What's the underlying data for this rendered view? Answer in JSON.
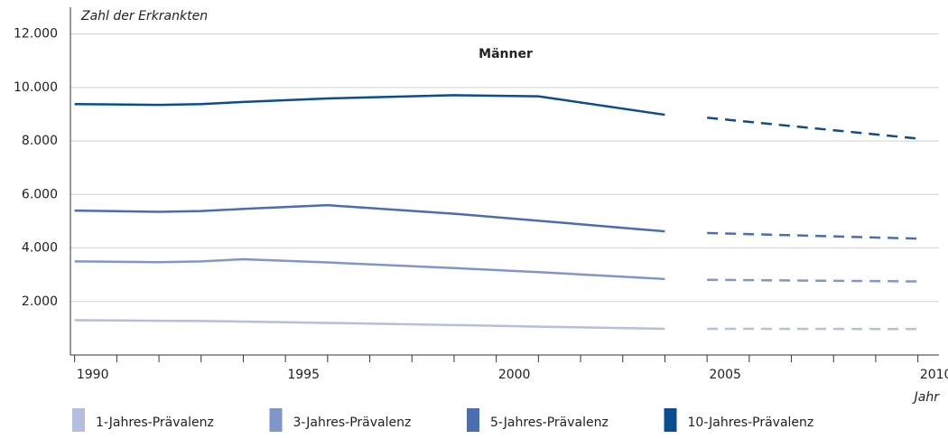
{
  "chart_data": {
    "type": "line",
    "title": "Männer",
    "y_label": "Zahl der Erkrankten",
    "x_label": "Jahr",
    "x": [
      1990,
      1992,
      1993,
      1994,
      1996,
      1999,
      2001,
      2004,
      2005,
      2010
    ],
    "xlim": [
      1989.9,
      2010.5
    ],
    "xticks": [
      1990,
      1995,
      2000,
      2005,
      2010
    ],
    "xminorticks": [
      1991,
      1992,
      1993,
      1994,
      1996,
      1997,
      1998,
      1999,
      2001,
      2002,
      2003,
      2004,
      2006,
      2007,
      2008,
      2009
    ],
    "ylim": [
      0,
      13000
    ],
    "yticks": [
      {
        "value": 2000,
        "label": "2.000"
      },
      {
        "value": 4000,
        "label": "4.000"
      },
      {
        "value": 6000,
        "label": "6.000"
      },
      {
        "value": 8000,
        "label": "8.000"
      },
      {
        "value": 10000,
        "label": "10.000"
      },
      {
        "value": 12000,
        "label": "12.000"
      }
    ],
    "grid": true,
    "series": [
      {
        "name": "1-Jahres-Prävalenz",
        "color": "#b4bfe0",
        "values": [
          1300,
          1280,
          1270,
          1250,
          1200,
          1120,
          1060,
          980,
          null,
          null
        ],
        "projected_values": [
          null,
          null,
          null,
          null,
          null,
          null,
          null,
          null,
          980,
          970
        ]
      },
      {
        "name": "3-Jahres-Prävalenz",
        "color": "#8096cb",
        "values": [
          3500,
          3470,
          3500,
          3580,
          3460,
          3250,
          3100,
          2840,
          null,
          null
        ],
        "projected_values": [
          null,
          null,
          null,
          null,
          null,
          null,
          null,
          null,
          2810,
          2750
        ]
      },
      {
        "name": "5-Jahres-Prävalenz",
        "color": "#4a6db3",
        "values": [
          5400,
          5350,
          5380,
          5460,
          5600,
          5280,
          5020,
          4620,
          null,
          null
        ],
        "projected_values": [
          null,
          null,
          null,
          null,
          null,
          null,
          null,
          null,
          4560,
          4350
        ]
      },
      {
        "name": "10-Jahres-Prävalenz",
        "color": "#0b4d8f",
        "values": [
          9380,
          9350,
          9380,
          9460,
          9590,
          9710,
          9670,
          8980,
          null,
          null
        ],
        "projected_values": [
          null,
          null,
          null,
          null,
          null,
          null,
          null,
          null,
          8870,
          8090
        ]
      }
    ]
  }
}
